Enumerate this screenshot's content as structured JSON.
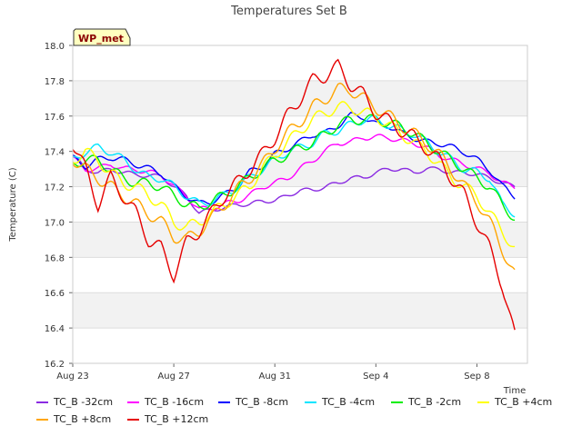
{
  "chart_data": {
    "type": "line",
    "title": "Temperatures Set B",
    "xlabel": "Time",
    "ylabel": "Temperature (C)",
    "site_badge": "WP_met",
    "x_ticks": [
      "Aug 23",
      "Aug 27",
      "Aug 31",
      "Sep 4",
      "Sep 8"
    ],
    "x_tick_days": [
      0,
      4,
      8,
      12,
      16
    ],
    "xlim_days": [
      0,
      18
    ],
    "ylim": [
      16.2,
      18.0
    ],
    "y_ticks": [
      "16.2",
      "16.4",
      "16.6",
      "16.8",
      "17.0",
      "17.2",
      "17.4",
      "17.6",
      "17.8",
      "18.0"
    ],
    "grid": "horizontal alternating bands",
    "legend_position": "bottom",
    "x_days": [
      0,
      0.5,
      1,
      1.5,
      2,
      2.5,
      3,
      3.5,
      4,
      4.5,
      5,
      5.5,
      6,
      6.5,
      7,
      7.5,
      8,
      8.5,
      9,
      9.5,
      10,
      10.5,
      11,
      11.5,
      12,
      12.5,
      13,
      13.5,
      14,
      14.5,
      15,
      15.5,
      16,
      16.5,
      17,
      17.5
    ],
    "series": [
      {
        "name": "TC_B -32cm",
        "color": "#8a2be2",
        "values": [
          17.38,
          17.3,
          17.28,
          17.3,
          17.28,
          17.27,
          17.26,
          17.26,
          17.2,
          17.15,
          17.05,
          17.07,
          17.08,
          17.1,
          17.1,
          17.12,
          17.12,
          17.15,
          17.18,
          17.18,
          17.2,
          17.22,
          17.25,
          17.25,
          17.28,
          17.3,
          17.3,
          17.28,
          17.3,
          17.3,
          17.28,
          17.28,
          17.27,
          17.25,
          17.22,
          17.2
        ]
      },
      {
        "name": "TC_B -16cm",
        "color": "#ff00ff",
        "values": [
          17.36,
          17.3,
          17.3,
          17.33,
          17.3,
          17.3,
          17.28,
          17.27,
          17.2,
          17.15,
          17.07,
          17.08,
          17.1,
          17.12,
          17.15,
          17.2,
          17.22,
          17.25,
          17.3,
          17.35,
          17.4,
          17.45,
          17.45,
          17.48,
          17.48,
          17.48,
          17.46,
          17.45,
          17.42,
          17.38,
          17.35,
          17.33,
          17.3,
          17.28,
          17.22,
          17.2
        ]
      },
      {
        "name": "TC_B -8cm",
        "color": "#0000ff",
        "values": [
          17.36,
          17.32,
          17.35,
          17.37,
          17.35,
          17.33,
          17.3,
          17.28,
          17.2,
          17.15,
          17.1,
          17.12,
          17.15,
          17.2,
          17.28,
          17.32,
          17.38,
          17.42,
          17.45,
          17.5,
          17.5,
          17.55,
          17.6,
          17.6,
          17.55,
          17.55,
          17.5,
          17.48,
          17.45,
          17.45,
          17.42,
          17.4,
          17.35,
          17.3,
          17.2,
          17.15
        ]
      },
      {
        "name": "TC_B -4cm",
        "color": "#00e5ff",
        "values": [
          17.35,
          17.4,
          17.42,
          17.4,
          17.35,
          17.3,
          17.25,
          17.25,
          17.2,
          17.15,
          17.1,
          17.12,
          17.15,
          17.2,
          17.25,
          17.3,
          17.35,
          17.4,
          17.42,
          17.45,
          17.5,
          17.52,
          17.55,
          17.58,
          17.58,
          17.55,
          17.52,
          17.5,
          17.45,
          17.4,
          17.35,
          17.3,
          17.28,
          17.25,
          17.1,
          17.05
        ]
      },
      {
        "name": "TC_B -2cm",
        "color": "#00ee00",
        "values": [
          17.33,
          17.35,
          17.35,
          17.3,
          17.25,
          17.22,
          17.22,
          17.2,
          17.15,
          17.1,
          17.08,
          17.12,
          17.15,
          17.2,
          17.25,
          17.3,
          17.35,
          17.38,
          17.42,
          17.45,
          17.5,
          17.55,
          17.58,
          17.58,
          17.58,
          17.56,
          17.54,
          17.5,
          17.45,
          17.4,
          17.35,
          17.3,
          17.25,
          17.2,
          17.1,
          17.02
        ]
      },
      {
        "name": "TC_B +4cm",
        "color": "#ffff00",
        "values": [
          17.35,
          17.4,
          17.35,
          17.28,
          17.22,
          17.2,
          17.15,
          17.1,
          17.0,
          16.97,
          17.0,
          17.05,
          17.1,
          17.15,
          17.2,
          17.3,
          17.38,
          17.45,
          17.52,
          17.58,
          17.62,
          17.65,
          17.65,
          17.62,
          17.6,
          17.55,
          17.5,
          17.45,
          17.4,
          17.33,
          17.25,
          17.2,
          17.15,
          17.05,
          16.95,
          16.85
        ]
      },
      {
        "name": "TC_B +8cm",
        "color": "#ffa500",
        "values": [
          17.36,
          17.3,
          17.25,
          17.2,
          17.15,
          17.1,
          17.05,
          17.0,
          16.92,
          16.9,
          16.95,
          17.02,
          17.1,
          17.18,
          17.25,
          17.32,
          17.42,
          17.5,
          17.57,
          17.65,
          17.7,
          17.75,
          17.75,
          17.7,
          17.65,
          17.6,
          17.55,
          17.5,
          17.45,
          17.38,
          17.3,
          17.2,
          17.12,
          17.0,
          16.85,
          16.7
        ]
      },
      {
        "name": "TC_B +12cm",
        "color": "#e60000",
        "values": [
          17.45,
          17.3,
          17.1,
          17.25,
          17.15,
          17.05,
          16.9,
          16.85,
          16.7,
          16.88,
          16.95,
          17.05,
          17.15,
          17.22,
          17.3,
          17.38,
          17.48,
          17.6,
          17.7,
          17.8,
          17.83,
          17.88,
          17.78,
          17.72,
          17.62,
          17.57,
          17.52,
          17.48,
          17.42,
          17.35,
          17.25,
          17.15,
          17.0,
          16.85,
          16.65,
          16.35
        ]
      }
    ]
  }
}
